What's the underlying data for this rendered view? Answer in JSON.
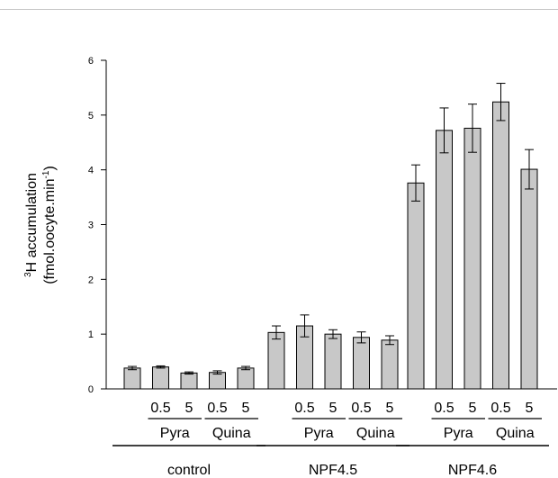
{
  "chart_data": {
    "type": "bar",
    "ylim": [
      0,
      6
    ],
    "yticks": [
      "0",
      "1",
      "2",
      "3",
      "4",
      "5",
      "6"
    ],
    "ylabel": {
      "line1_sup": "3",
      "line1": "H accumulation",
      "line2": "(fmol.oocyte.min",
      "line2_sup": "-1",
      "line2_end": ")"
    },
    "bar_color": "#c8c8c8",
    "groups": [
      {
        "name": "control",
        "treatments": [
          {
            "label": "",
            "value": 0.38,
            "error": 0.03
          },
          {
            "label": "0.5",
            "value": 0.4,
            "error": 0.02
          },
          {
            "label": "5",
            "value": 0.29,
            "error": 0.02
          },
          {
            "label": "0.5",
            "value": 0.3,
            "error": 0.03
          },
          {
            "label": "5",
            "value": 0.38,
            "error": 0.03
          }
        ],
        "drugs": [
          {
            "name": "Pyra",
            "from": 1,
            "to": 2
          },
          {
            "name": "Quina",
            "from": 3,
            "to": 4
          }
        ]
      },
      {
        "name": "NPF4.5",
        "treatments": [
          {
            "label": "",
            "value": 1.03,
            "error": 0.12
          },
          {
            "label": "0.5",
            "value": 1.15,
            "error": 0.2
          },
          {
            "label": "5",
            "value": 1.0,
            "error": 0.08
          },
          {
            "label": "0.5",
            "value": 0.94,
            "error": 0.1
          },
          {
            "label": "5",
            "value": 0.89,
            "error": 0.08
          }
        ],
        "drugs": [
          {
            "name": "Pyra",
            "from": 1,
            "to": 2
          },
          {
            "name": "Quina",
            "from": 3,
            "to": 4
          }
        ]
      },
      {
        "name": "NPF4.6",
        "treatments": [
          {
            "label": "",
            "value": 3.76,
            "error": 0.33
          },
          {
            "label": "0.5",
            "value": 4.72,
            "error": 0.41
          },
          {
            "label": "5",
            "value": 4.76,
            "error": 0.44
          },
          {
            "label": "0.5",
            "value": 5.24,
            "error": 0.34
          },
          {
            "label": "5",
            "value": 4.01,
            "error": 0.36
          }
        ],
        "drugs": [
          {
            "name": "Pyra",
            "from": 1,
            "to": 2
          },
          {
            "name": "Quina",
            "from": 3,
            "to": 4
          }
        ]
      }
    ]
  }
}
